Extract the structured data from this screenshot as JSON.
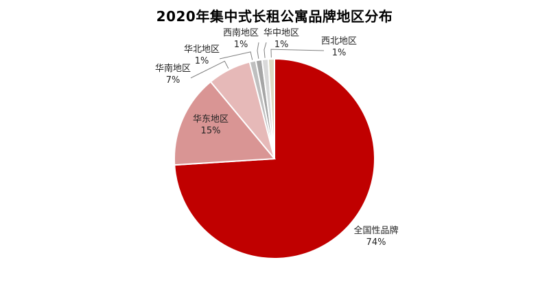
{
  "chart_data": {
    "type": "pie",
    "title": "2020年集中式长租公寓品牌地区分布",
    "slices": [
      {
        "label": "全国性品牌",
        "value": 74,
        "value_label": "74%",
        "color": "#c00000"
      },
      {
        "label": "华东地区",
        "value": 15,
        "value_label": "15%",
        "color": "#d99594"
      },
      {
        "label": "华南地区",
        "value": 7,
        "value_label": "7%",
        "color": "#e6b9b8"
      },
      {
        "label": "华北地区",
        "value": 1,
        "value_label": "1%",
        "color": "#bfbfbf"
      },
      {
        "label": "西南地区",
        "value": 1,
        "value_label": "1%",
        "color": "#a6a6a6"
      },
      {
        "label": "华中地区",
        "value": 1,
        "value_label": "1%",
        "color": "#d9d9d9"
      },
      {
        "label": "西北地区",
        "value": 1,
        "value_label": "1%",
        "color": "#ddd9c3"
      }
    ],
    "legend": "none"
  }
}
